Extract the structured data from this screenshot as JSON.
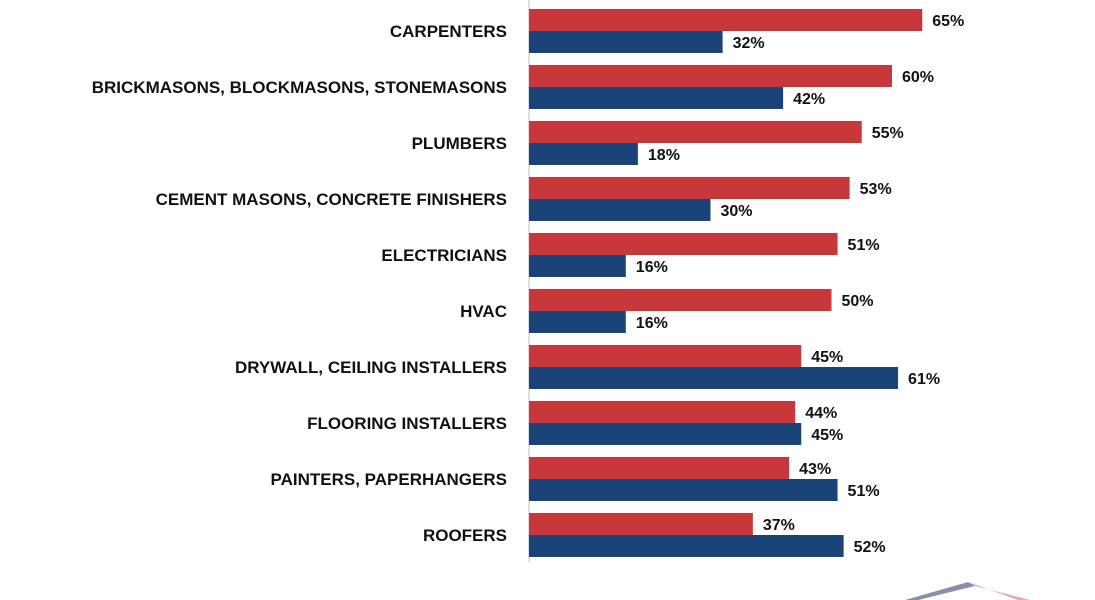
{
  "chart_data": {
    "type": "bar",
    "orientation": "horizontal",
    "categories": [
      "CARPENTERS",
      "BRICKMASONS, BLOCKMASONS, STONEMASONS",
      "PLUMBERS",
      "CEMENT MASONS, CONCRETE FINISHERS",
      "ELECTRICIANS",
      "HVAC",
      "DRYWALL, CEILING INSTALLERS",
      "FLOORING INSTALLERS",
      "PAINTERS, PAPERHANGERS",
      "ROOFERS"
    ],
    "series": [
      {
        "color": "#c8373a",
        "values": [
          65,
          60,
          55,
          53,
          51,
          50,
          45,
          44,
          43,
          37
        ]
      },
      {
        "color": "#1a4479",
        "values": [
          32,
          42,
          18,
          30,
          16,
          16,
          61,
          45,
          51,
          52
        ]
      }
    ],
    "value_suffix": "%",
    "xlim": [
      0,
      100
    ],
    "grid": false,
    "legend": "none"
  }
}
